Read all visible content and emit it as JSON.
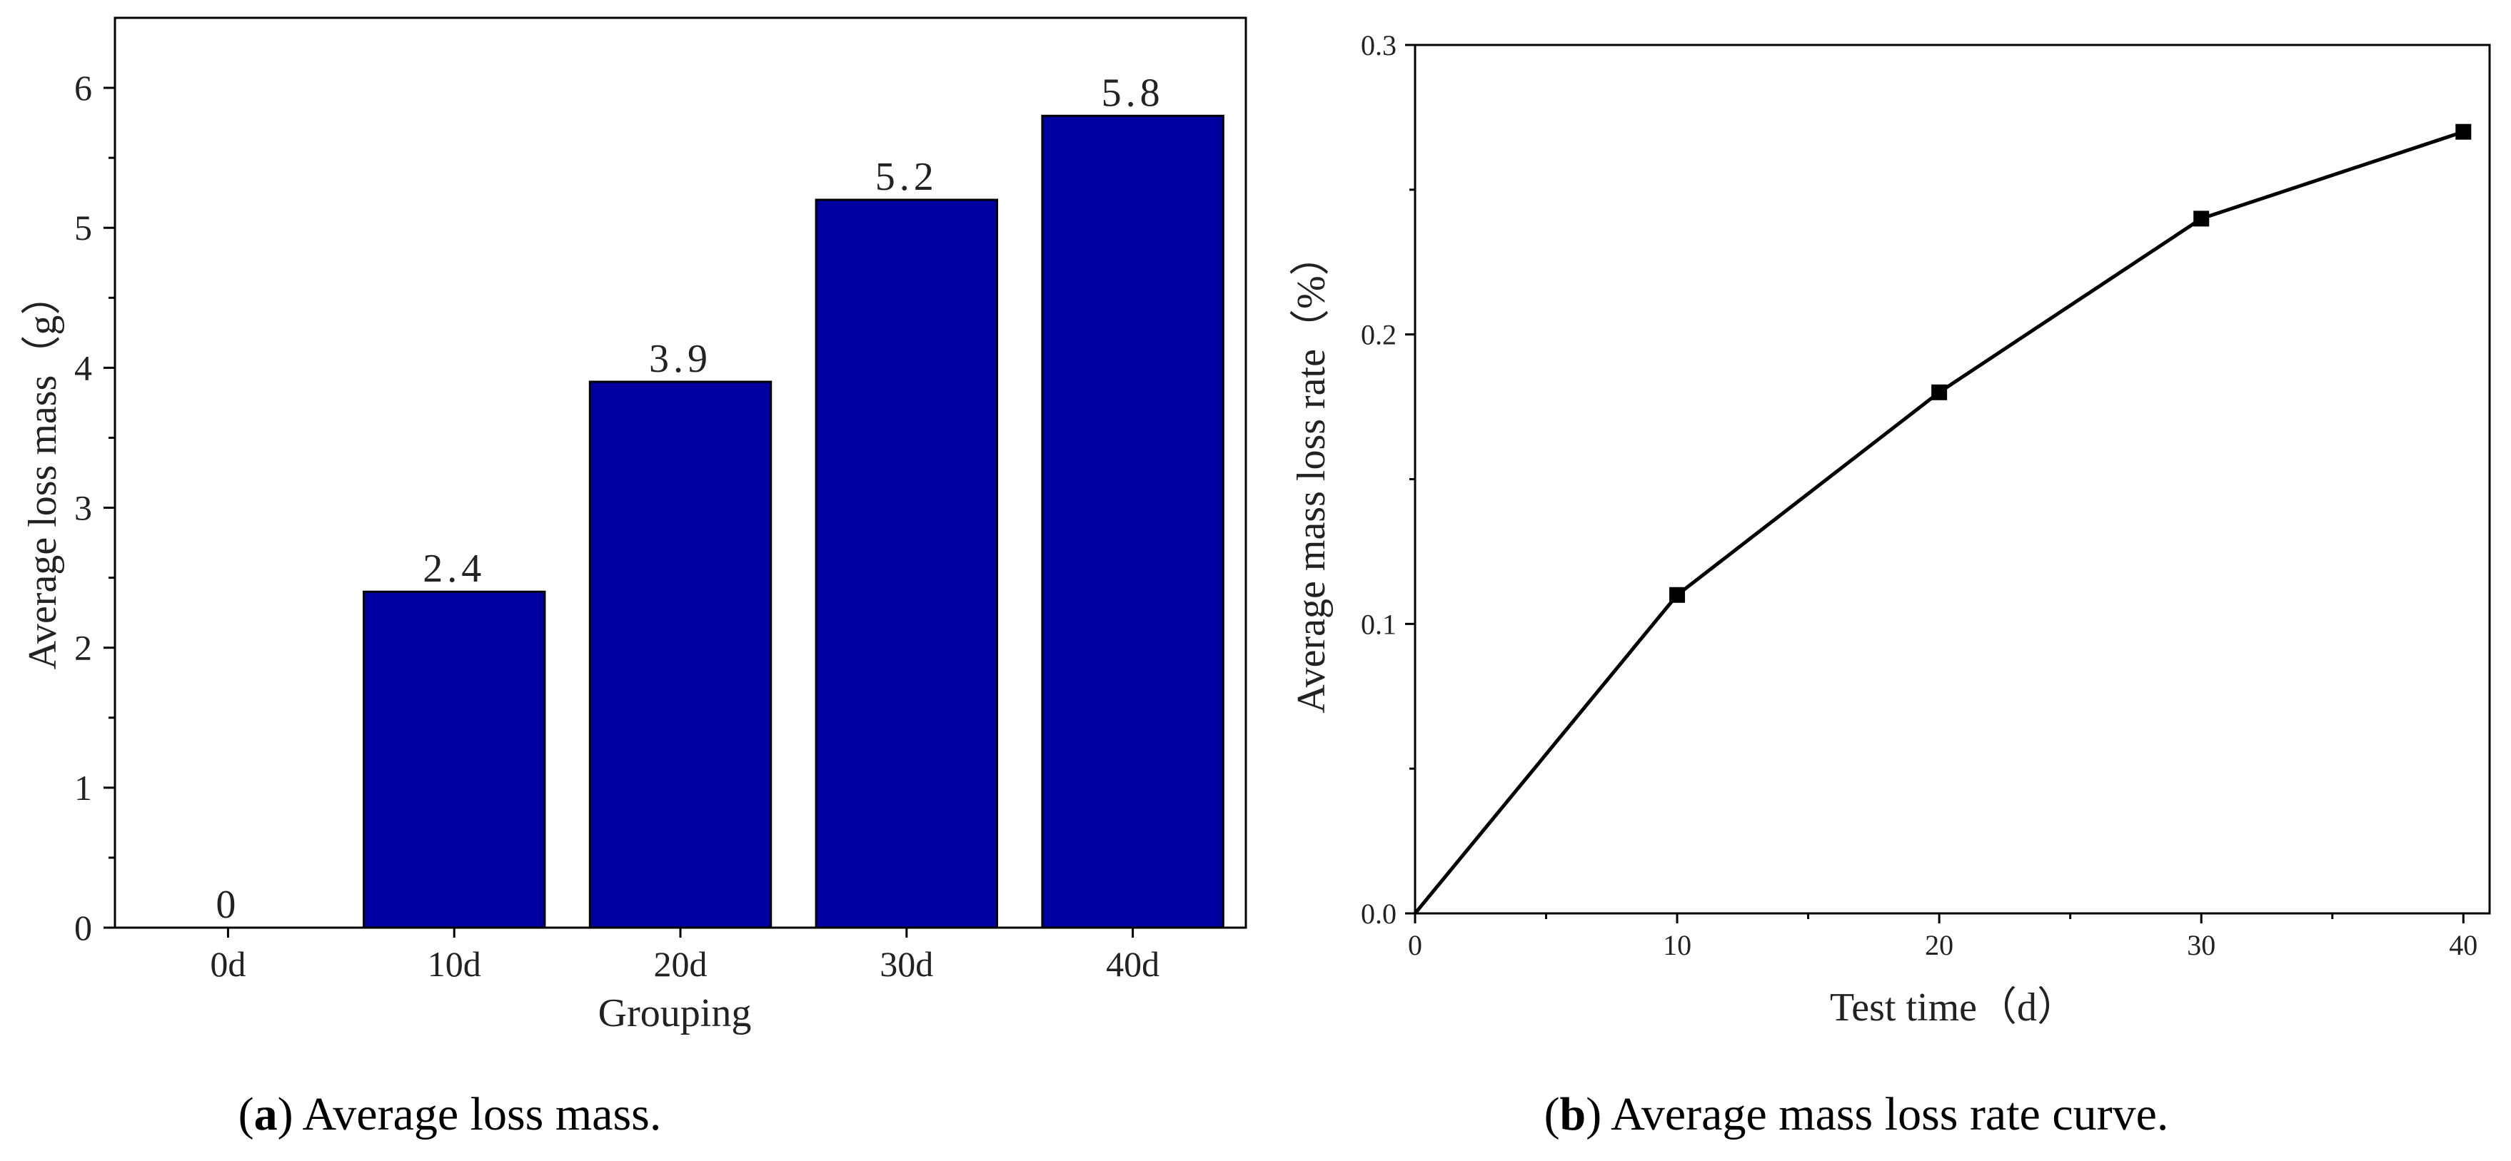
{
  "chart_data": [
    {
      "type": "bar",
      "title": "",
      "caption_letter": "a",
      "caption_text": "Average loss mass.",
      "xlabel": "Grouping",
      "ylabel": "Average loss mass（g）",
      "categories": [
        "0d",
        "10d",
        "20d",
        "30d",
        "40d"
      ],
      "values": [
        0,
        2.4,
        3.9,
        5.2,
        5.8
      ],
      "value_labels": [
        "0",
        "2.4",
        "3.9",
        "5.2",
        "5.8"
      ],
      "ylim": [
        0,
        6.5
      ],
      "yticks": [
        0,
        1,
        2,
        3,
        4,
        5,
        6
      ],
      "ytick_labels": [
        "0",
        "1",
        "2",
        "3",
        "4",
        "5",
        "6"
      ],
      "bar_color": "#0000A0",
      "grid": false
    },
    {
      "type": "line",
      "title": "",
      "caption_letter": "b",
      "caption_text": "Average mass loss rate curve.",
      "xlabel": "Test time（d）",
      "ylabel": "Average mass loss rate（%）",
      "series": [
        {
          "name": "Average mass loss rate",
          "x": [
            0,
            10,
            20,
            30,
            40
          ],
          "y": [
            0,
            0.11,
            0.18,
            0.24,
            0.27
          ]
        }
      ],
      "xlim": [
        0,
        41
      ],
      "ylim": [
        0,
        0.3
      ],
      "xticks": [
        0,
        10,
        20,
        30,
        40
      ],
      "xtick_labels": [
        "0",
        "10",
        "20",
        "30",
        "40"
      ],
      "yticks": [
        0,
        0.1,
        0.2,
        0.3
      ],
      "ytick_labels": [
        "0.0",
        "0.1",
        "0.2",
        "0.3"
      ],
      "line_color": "#000000",
      "marker": "square",
      "grid": false
    }
  ]
}
